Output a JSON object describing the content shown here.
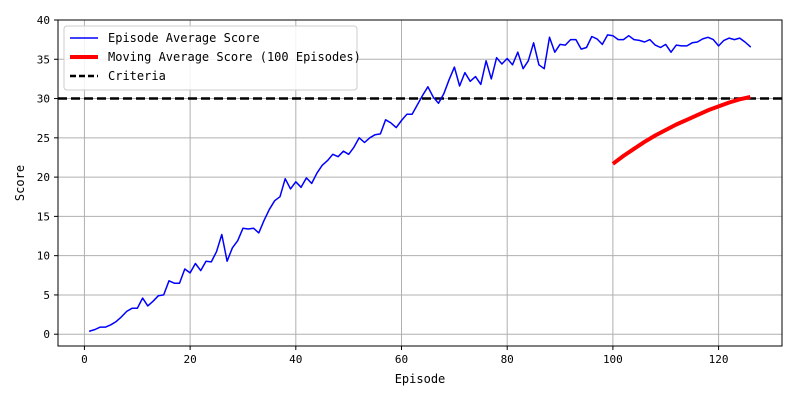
{
  "chart_data": {
    "type": "line",
    "title": "",
    "xlabel": "Episode",
    "ylabel": "Score",
    "xlim": [
      -5,
      132
    ],
    "ylim": [
      -1.5,
      40
    ],
    "xticks": [
      0,
      20,
      40,
      60,
      80,
      100,
      120
    ],
    "yticks": [
      0,
      5,
      10,
      15,
      20,
      25,
      30,
      35,
      40
    ],
    "grid": true,
    "legend_position": "upper-left",
    "series": [
      {
        "name": "Episode Average Score",
        "color": "#0000ff",
        "x": [
          1,
          2,
          3,
          4,
          5,
          6,
          7,
          8,
          9,
          10,
          11,
          12,
          13,
          14,
          15,
          16,
          17,
          18,
          19,
          20,
          21,
          22,
          23,
          24,
          25,
          26,
          27,
          28,
          29,
          30,
          31,
          32,
          33,
          34,
          35,
          36,
          37,
          38,
          39,
          40,
          41,
          42,
          43,
          44,
          45,
          46,
          47,
          48,
          49,
          50,
          51,
          52,
          53,
          54,
          55,
          56,
          57,
          58,
          59,
          60,
          61,
          62,
          63,
          64,
          65,
          66,
          67,
          68,
          69,
          70,
          71,
          72,
          73,
          74,
          75,
          76,
          77,
          78,
          79,
          80,
          81,
          82,
          83,
          84,
          85,
          86,
          87,
          88,
          89,
          90,
          91,
          92,
          93,
          94,
          95,
          96,
          97,
          98,
          99,
          100,
          101,
          102,
          103,
          104,
          105,
          106,
          107,
          108,
          109,
          110,
          111,
          112,
          113,
          114,
          115,
          116,
          117,
          118,
          119,
          120,
          121,
          122,
          123,
          124,
          125,
          126
        ],
        "y": [
          0.4,
          0.6,
          0.9,
          0.9,
          1.2,
          1.6,
          2.2,
          2.9,
          3.3,
          3.3,
          4.6,
          3.6,
          4.2,
          4.9,
          5.0,
          6.8,
          6.5,
          6.5,
          8.3,
          7.8,
          9.0,
          8.1,
          9.3,
          9.2,
          10.5,
          12.7,
          9.3,
          11.0,
          11.9,
          13.5,
          13.4,
          13.5,
          12.9,
          14.5,
          15.9,
          17.0,
          17.5,
          19.8,
          18.5,
          19.4,
          18.7,
          19.9,
          19.2,
          20.5,
          21.5,
          22.1,
          22.9,
          22.6,
          23.3,
          22.9,
          23.8,
          25.0,
          24.4,
          25.0,
          25.4,
          25.5,
          27.3,
          26.9,
          26.3,
          27.2,
          28.0,
          28.0,
          29.2,
          30.4,
          31.5,
          30.2,
          29.4,
          30.6,
          32.4,
          34.0,
          31.6,
          33.3,
          32.2,
          32.8,
          31.8,
          34.8,
          32.5,
          35.2,
          34.4,
          35.1,
          34.3,
          35.9,
          33.8,
          34.8,
          37.1,
          34.3,
          33.8,
          37.8,
          35.9,
          36.9,
          36.8,
          37.5,
          37.5,
          36.3,
          36.5,
          37.9,
          37.6,
          36.9,
          38.1,
          38.0,
          37.5,
          37.5,
          38.0,
          37.5,
          37.4,
          37.2,
          37.5,
          36.8,
          36.5,
          36.9,
          35.9,
          36.8,
          36.7,
          36.7,
          37.1,
          37.2,
          37.6,
          37.8,
          37.5,
          36.7,
          37.4,
          37.7,
          37.5,
          37.7,
          37.2,
          36.6
        ],
        "line_width": 1.5
      },
      {
        "name": "Moving Average Score (100 Episodes)",
        "color": "#ff0000",
        "x": [
          100,
          102,
          104,
          106,
          108,
          110,
          112,
          114,
          116,
          118,
          120,
          122,
          124,
          126
        ],
        "y": [
          21.7,
          22.7,
          23.6,
          24.5,
          25.3,
          26.0,
          26.7,
          27.3,
          27.9,
          28.5,
          29.0,
          29.5,
          29.9,
          30.2
        ],
        "line_width": 4
      }
    ],
    "reference_lines": [
      {
        "name": "Criteria",
        "orientation": "horizontal",
        "y": 30,
        "color": "#000000",
        "style": "dashed"
      }
    ],
    "legend": [
      {
        "label": "Episode Average Score",
        "color": "#0000ff",
        "style": "solid",
        "width": 1.5
      },
      {
        "label": "Moving Average Score (100 Episodes)",
        "color": "#ff0000",
        "style": "solid",
        "width": 4
      },
      {
        "label": "Criteria",
        "color": "#000000",
        "style": "dashed",
        "width": 2.5
      }
    ]
  }
}
